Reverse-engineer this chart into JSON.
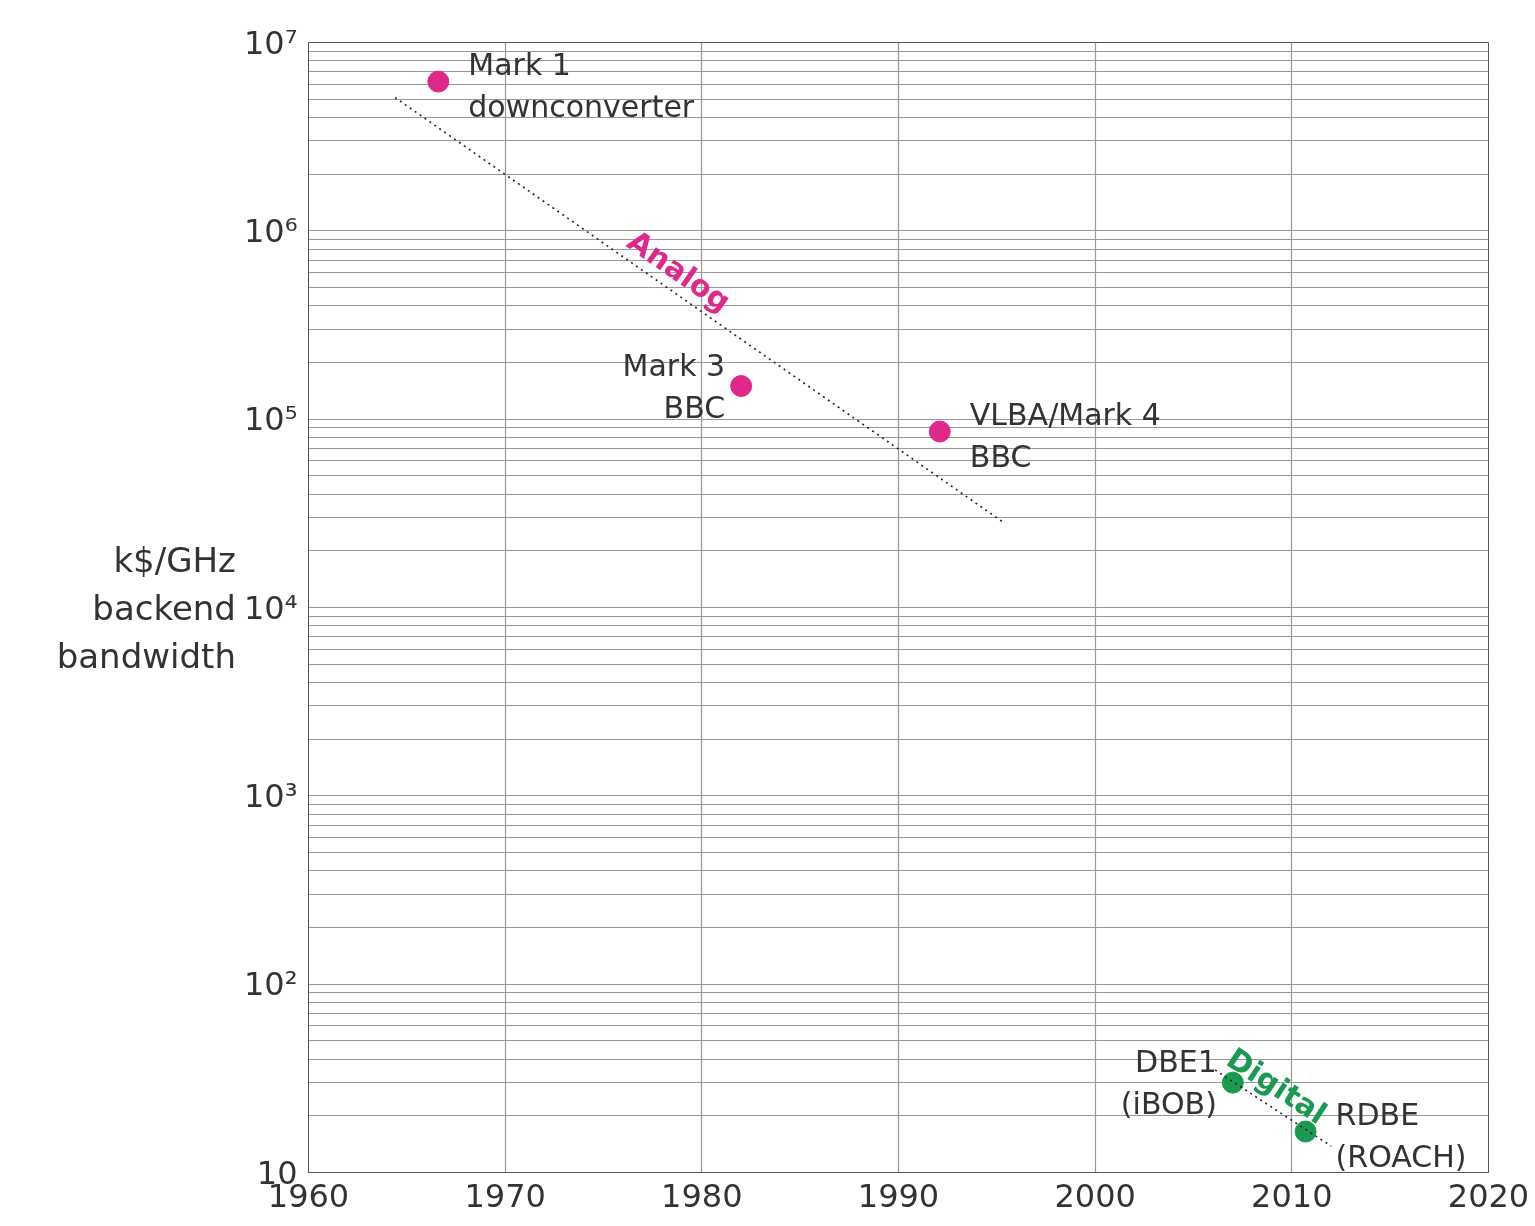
{
  "chart_data": {
    "type": "scatter",
    "ylabel": "k$/GHz\nbackend\nbandwidth",
    "log": "y",
    "grid": true,
    "marker": "circle",
    "xlim": [
      1960,
      2020
    ],
    "xticks": [
      1960,
      1970,
      1980,
      1990,
      2000,
      2010,
      2020
    ],
    "ylim": [
      10,
      10000000
    ],
    "yticks": [
      10,
      {
        "value": 100,
        "label": "10²"
      },
      {
        "value": 1000,
        "label": "10³"
      },
      {
        "value": 10000,
        "label": "10⁴"
      },
      {
        "value": 100000,
        "label": "10⁵"
      },
      {
        "value": 1000000,
        "label": "10⁶"
      },
      {
        "value": 10000000,
        "label": "10⁷"
      }
    ],
    "series": [
      {
        "name": "Analog",
        "color": "#e0288a",
        "x": [
          1966.6,
          1982.0,
          1992.1
        ],
        "values": [
          6200000,
          150000,
          86000
        ]
      },
      {
        "type": "line",
        "color": "#222222",
        "line_style": "dotted",
        "marker": "none",
        "x": [
          1964.4,
          1995.4
        ],
        "values": [
          5100000,
          28000
        ]
      },
      {
        "name": "Digital",
        "color": "#1a9a50",
        "x": [
          2007.0,
          2010.7
        ],
        "values": [
          30,
          16.5
        ]
      },
      {
        "type": "line",
        "color": "#222222",
        "line_style": "dotted",
        "marker": "none",
        "x": [
          2006.1,
          2012.0
        ],
        "values": [
          35,
          13.8
        ]
      }
    ],
    "annotations": [
      {
        "text": "Mark 1\ndownconverter",
        "x": 1966.6,
        "y": 6200000
      },
      {
        "text": "Mark 3\nBBC",
        "x": 1982.0,
        "y": 150000
      },
      {
        "text": "VLBA/Mark 4\nBBC",
        "x": 1992.1,
        "y": 86000
      },
      {
        "text": "DBE1\n(iBOB)",
        "x": 2007.0,
        "y": 30
      },
      {
        "text": "RDBE\n(ROACH)",
        "x": 2010.7,
        "y": 16.5
      }
    ]
  }
}
